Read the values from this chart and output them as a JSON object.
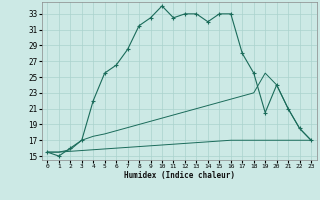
{
  "xlabel": "Humidex (Indice chaleur)",
  "bg_color": "#cce9e5",
  "grid_color": "#aad3ce",
  "line_color": "#1a6b5a",
  "xlim": [
    -0.5,
    23.5
  ],
  "ylim": [
    14.5,
    34.5
  ],
  "yticks": [
    15,
    17,
    19,
    21,
    23,
    25,
    27,
    29,
    31,
    33
  ],
  "xticks": [
    0,
    1,
    2,
    3,
    4,
    5,
    6,
    7,
    8,
    9,
    10,
    11,
    12,
    13,
    14,
    15,
    16,
    17,
    18,
    19,
    20,
    21,
    22,
    23
  ],
  "line1_x": [
    0,
    1,
    2,
    3,
    4,
    5,
    6,
    7,
    8,
    9,
    10,
    11,
    12,
    13,
    14,
    15,
    16,
    17,
    18,
    19,
    20,
    21,
    22,
    23
  ],
  "line1_y": [
    15.5,
    15.0,
    16.0,
    17.0,
    22.0,
    25.5,
    26.5,
    28.5,
    31.5,
    32.5,
    34.0,
    32.5,
    33.0,
    33.0,
    32.0,
    33.0,
    33.0,
    28.0,
    25.5,
    20.5,
    24.0,
    21.0,
    18.5,
    17.0
  ],
  "line2_x": [
    0,
    1,
    2,
    3,
    4,
    5,
    6,
    7,
    8,
    9,
    10,
    11,
    12,
    13,
    14,
    15,
    16,
    17,
    18,
    19,
    20,
    21,
    22,
    23
  ],
  "line2_y": [
    15.5,
    15.5,
    15.8,
    17.0,
    17.5,
    17.8,
    18.2,
    18.6,
    19.0,
    19.4,
    19.8,
    20.2,
    20.6,
    21.0,
    21.4,
    21.8,
    22.2,
    22.6,
    23.0,
    25.5,
    24.0,
    21.0,
    18.5,
    17.0
  ],
  "line3_x": [
    0,
    1,
    2,
    3,
    4,
    5,
    6,
    7,
    8,
    9,
    10,
    11,
    12,
    13,
    14,
    15,
    16,
    17,
    18,
    23
  ],
  "line3_y": [
    15.5,
    15.5,
    15.6,
    15.7,
    15.8,
    15.9,
    16.0,
    16.1,
    16.2,
    16.3,
    16.4,
    16.5,
    16.6,
    16.7,
    16.8,
    16.9,
    17.0,
    17.0,
    17.0,
    17.0
  ]
}
